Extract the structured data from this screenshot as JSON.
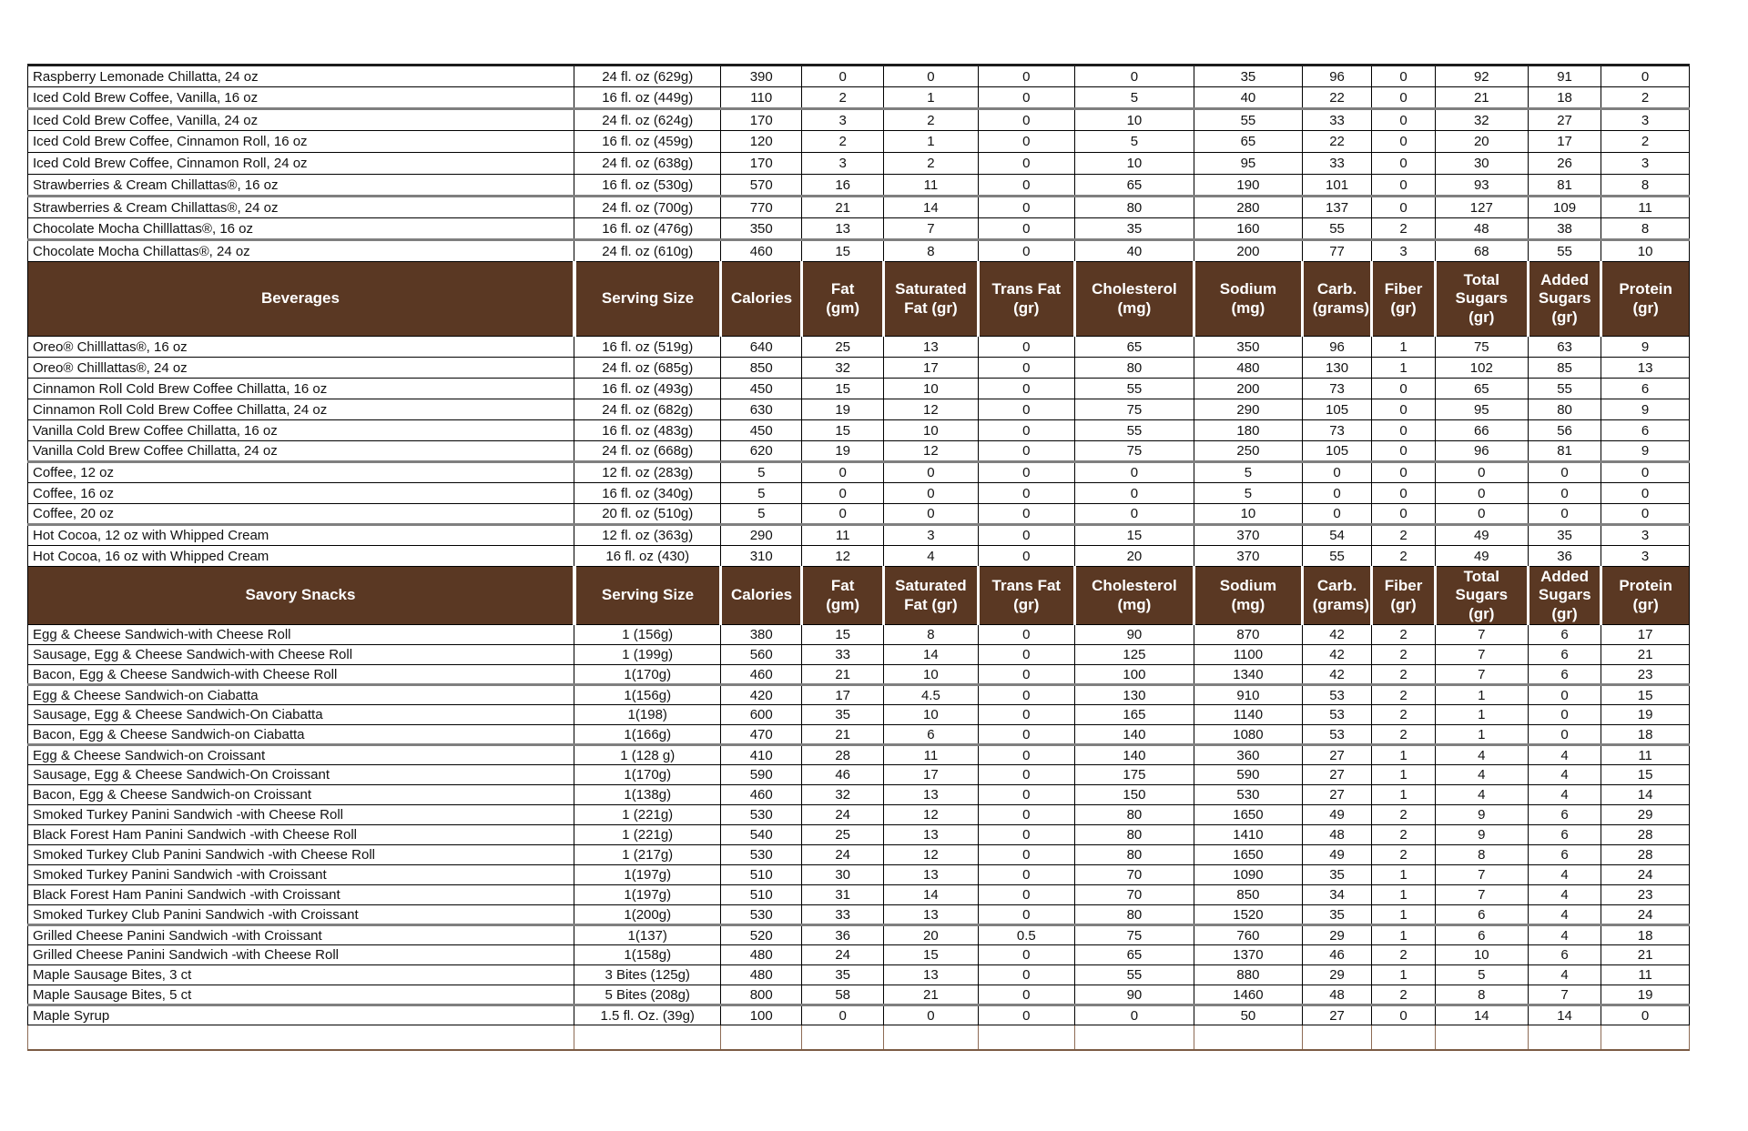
{
  "table": {
    "item_column_label": "",
    "column_labels": [
      "Serving Size",
      "Calories",
      "Fat (gm)",
      "Saturated Fat (gr)",
      "Trans Fat (gr)",
      "Cholesterol (mg)",
      "Sodium (mg)",
      "Carb. (grams)",
      "Fiber (gr)",
      "Total Sugars (gr)",
      "Added Sugars (gr)",
      "Protein (gr)"
    ],
    "value_keys": [
      "calories",
      "fat_gm",
      "saturated_fat_gr",
      "trans_fat_gr",
      "cholesterol_mg",
      "sodium_mg",
      "carb_grams",
      "fiber_gr",
      "total_sugars_gr",
      "added_sugars_gr",
      "protein_gr"
    ],
    "sections": [
      {
        "header": null,
        "rows": [
          {
            "item": "Raspberry Lemonade Chillatta, 24 oz",
            "serving": "24 fl. oz (629g)",
            "values": [
              390,
              0,
              0,
              0,
              0,
              35,
              96,
              0,
              92,
              91,
              0
            ]
          },
          {
            "item": "Iced Cold Brew Coffee, Vanilla, 16 oz",
            "serving": "16 fl. oz (449g)",
            "values": [
              110,
              2,
              1,
              0,
              5,
              40,
              22,
              0,
              21,
              18,
              2
            ]
          },
          {
            "item": "Iced Cold Brew Coffee,  Vanilla, 24 oz",
            "serving": "24 fl. oz (624g)",
            "values": [
              170,
              3,
              2,
              0,
              10,
              55,
              33,
              0,
              32,
              27,
              3
            ]
          },
          {
            "item": "Iced Cold Brew Coffee, Cinnamon Roll, 16 oz",
            "serving": "16 fl. oz (459g)",
            "values": [
              120,
              2,
              1,
              0,
              5,
              65,
              22,
              0,
              20,
              17,
              2
            ]
          },
          {
            "item": "Iced Cold Brew Coffee, Cinnamon Roll, 24 oz",
            "serving": "24 fl. oz (638g)",
            "values": [
              170,
              3,
              2,
              0,
              10,
              95,
              33,
              0,
              30,
              26,
              3
            ]
          },
          {
            "item": "Strawberries & Cream Chillattas®, 16 oz",
            "serving": "16 fl. oz (530g)",
            "values": [
              570,
              16,
              11,
              0,
              65,
              190,
              101,
              0,
              93,
              81,
              8
            ]
          },
          {
            "item": "Strawberries & Cream Chillattas®, 24 oz",
            "serving": "24 fl. oz (700g)",
            "values": [
              770,
              21,
              14,
              0,
              80,
              280,
              137,
              0,
              127,
              109,
              11
            ]
          },
          {
            "item": "Chocolate Mocha Chilllattas®, 16 oz",
            "serving": "16 fl. oz (476g)",
            "values": [
              350,
              13,
              7,
              0,
              35,
              160,
              55,
              2,
              48,
              38,
              8
            ]
          },
          {
            "item": "Chocolate Mocha Chillattas®, 24 oz",
            "serving": "24 fl. oz (610g)",
            "values": [
              460,
              15,
              8,
              0,
              40,
              200,
              77,
              3,
              68,
              55,
              10
            ]
          }
        ]
      },
      {
        "header": "Beverages",
        "rows": [
          {
            "item": "Oreo® Chilllattas®, 16 oz",
            "serving": "16 fl. oz (519g)",
            "values": [
              640,
              25,
              13,
              0,
              65,
              350,
              96,
              1,
              75,
              63,
              9
            ]
          },
          {
            "item": "Oreo® Chilllattas®, 24 oz",
            "serving": "24 fl. oz (685g)",
            "values": [
              850,
              32,
              17,
              0,
              80,
              480,
              130,
              1,
              102,
              85,
              13
            ]
          },
          {
            "item": "Cinnamon Roll Cold Brew Coffee Chillatta, 16 oz",
            "serving": "16 fl. oz (493g)",
            "values": [
              450,
              15,
              10,
              0,
              55,
              200,
              73,
              0,
              65,
              55,
              6
            ]
          },
          {
            "item": "Cinnamon Roll Cold Brew Coffee Chillatta, 24 oz",
            "serving": "24 fl. oz (682g)",
            "values": [
              630,
              19,
              12,
              0,
              75,
              290,
              105,
              0,
              95,
              80,
              9
            ]
          },
          {
            "item": "Vanilla Cold Brew Coffee Chillatta, 16 oz",
            "serving": "16 fl. oz (483g)",
            "values": [
              450,
              15,
              10,
              0,
              55,
              180,
              73,
              0,
              66,
              56,
              6
            ]
          },
          {
            "item": "Vanilla Cold Brew Coffee Chillatta, 24 oz",
            "serving": "24 fl. oz (668g)",
            "values": [
              620,
              19,
              12,
              0,
              75,
              250,
              105,
              0,
              96,
              81,
              9
            ]
          },
          {
            "item": "Coffee, 12 oz",
            "serving": "12 fl. oz (283g)",
            "values": [
              5,
              0,
              0,
              0,
              0,
              5,
              0,
              0,
              0,
              0,
              0
            ]
          },
          {
            "item": "Coffee, 16 oz",
            "serving": "16 fl. oz (340g)",
            "values": [
              5,
              0,
              0,
              0,
              0,
              5,
              0,
              0,
              0,
              0,
              0
            ]
          },
          {
            "item": "Coffee, 20 oz",
            "serving": "20 fl. oz (510g)",
            "values": [
              5,
              0,
              0,
              0,
              0,
              10,
              0,
              0,
              0,
              0,
              0
            ]
          },
          {
            "item": "Hot Cocoa, 12 oz with Whipped Cream",
            "serving": "12 fl. oz (363g)",
            "values": [
              290,
              11,
              3,
              0,
              15,
              370,
              54,
              2,
              49,
              35,
              3
            ]
          },
          {
            "item": "Hot Cocoa, 16 oz with  Whipped Cream",
            "serving": "16 fl. oz (430)",
            "values": [
              310,
              12,
              4,
              0,
              20,
              370,
              55,
              2,
              49,
              36,
              3
            ]
          }
        ]
      },
      {
        "header": "Savory Snacks",
        "rows": [
          {
            "item": "Egg & Cheese Sandwich-with Cheese Roll",
            "serving": "1 (156g)",
            "values": [
              380,
              15,
              8,
              0,
              90,
              870,
              42,
              2,
              7,
              6,
              17
            ]
          },
          {
            "item": "Sausage, Egg & Cheese Sandwich-with Cheese Roll",
            "serving": "1 (199g)",
            "values": [
              560,
              33,
              14,
              0,
              125,
              1100,
              42,
              2,
              7,
              6,
              21
            ]
          },
          {
            "item": "Bacon, Egg & Cheese Sandwich-with Cheese Roll",
            "serving": "1(170g)",
            "values": [
              460,
              21,
              10,
              0,
              100,
              1340,
              42,
              2,
              7,
              6,
              23
            ]
          },
          {
            "item": "Egg & Cheese Sandwich-on Ciabatta",
            "serving": "1(156g)",
            "values": [
              420,
              17,
              4.5,
              0,
              130,
              910,
              53,
              2,
              1,
              0,
              15
            ]
          },
          {
            "item": "Sausage, Egg & Cheese Sandwich-On Ciabatta",
            "serving": "1(198)",
            "values": [
              600,
              35,
              10,
              0,
              165,
              1140,
              53,
              2,
              1,
              0,
              19
            ]
          },
          {
            "item": "Bacon, Egg & Cheese Sandwich-on Ciabatta",
            "serving": "1(166g)",
            "values": [
              470,
              21,
              6,
              0,
              140,
              1080,
              53,
              2,
              1,
              0,
              18
            ]
          },
          {
            "item": "Egg & Cheese Sandwich-on Croissant",
            "serving": "1 (128 g)",
            "values": [
              410,
              28,
              11,
              0,
              140,
              360,
              27,
              1,
              4,
              4,
              11
            ]
          },
          {
            "item": "Sausage, Egg & Cheese Sandwich-On Croissant",
            "serving": "1(170g)",
            "values": [
              590,
              46,
              17,
              0,
              175,
              590,
              27,
              1,
              4,
              4,
              15
            ]
          },
          {
            "item": "Bacon, Egg & Cheese Sandwich-on Croissant",
            "serving": "1(138g)",
            "values": [
              460,
              32,
              13,
              0,
              150,
              530,
              27,
              1,
              4,
              4,
              14
            ]
          },
          {
            "item": "Smoked Turkey Panini Sandwich -with Cheese Roll",
            "serving": "1 (221g)",
            "values": [
              530,
              24,
              12,
              0,
              80,
              1650,
              49,
              2,
              9,
              6,
              29
            ]
          },
          {
            "item": "Black Forest Ham Panini Sandwich -with Cheese Roll",
            "serving": "1 (221g)",
            "values": [
              540,
              25,
              13,
              0,
              80,
              1410,
              48,
              2,
              9,
              6,
              28
            ]
          },
          {
            "item": "Smoked Turkey Club Panini Sandwich -with Cheese Roll",
            "serving": "1 (217g)",
            "values": [
              530,
              24,
              12,
              0,
              80,
              1650,
              49,
              2,
              8,
              6,
              28
            ]
          },
          {
            "item": "Smoked Turkey Panini Sandwich -with Croissant",
            "serving": "1(197g)",
            "values": [
              510,
              30,
              13,
              0,
              70,
              1090,
              35,
              1,
              7,
              4,
              24
            ]
          },
          {
            "item": "Black Forest Ham Panini Sandwich -with Croissant",
            "serving": "1(197g)",
            "values": [
              510,
              31,
              14,
              0,
              70,
              850,
              34,
              1,
              7,
              4,
              23
            ]
          },
          {
            "item": "Smoked Turkey Club Panini Sandwich -with Croissant",
            "serving": "1(200g)",
            "values": [
              530,
              33,
              13,
              0,
              80,
              1520,
              35,
              1,
              6,
              4,
              24
            ]
          },
          {
            "item": "Grilled Cheese Panini Sandwich -with Croissant",
            "serving": "1(137)",
            "values": [
              520,
              36,
              20,
              0.5,
              75,
              760,
              29,
              1,
              6,
              4,
              18
            ]
          },
          {
            "item": "Grilled Cheese Panini Sandwich -with Cheese Roll",
            "serving": "1(158g)",
            "values": [
              480,
              24,
              15,
              0,
              65,
              1370,
              46,
              2,
              10,
              6,
              21
            ]
          },
          {
            "item": "Maple Sausage Bites, 3 ct",
            "serving": "3 Bites (125g)",
            "values": [
              480,
              35,
              13,
              0,
              55,
              880,
              29,
              1,
              5,
              4,
              11
            ]
          },
          {
            "item": "Maple Sausage Bites, 5 ct",
            "serving": "5 Bites (208g)",
            "values": [
              800,
              58,
              21,
              0,
              90,
              1460,
              48,
              2,
              8,
              7,
              19
            ]
          },
          {
            "item": "Maple Syrup",
            "serving": "1.5 fl. Oz. (39g)",
            "values": [
              100,
              0,
              0,
              0,
              0,
              50,
              27,
              0,
              14,
              14,
              0
            ]
          }
        ]
      }
    ]
  },
  "colors": {
    "section_header_background": "#5a3823",
    "section_header_text": "#ffffff",
    "grid_line": "#000000",
    "group_separator": "#7f7f7f",
    "footer_row_border": "#8d6b55"
  }
}
